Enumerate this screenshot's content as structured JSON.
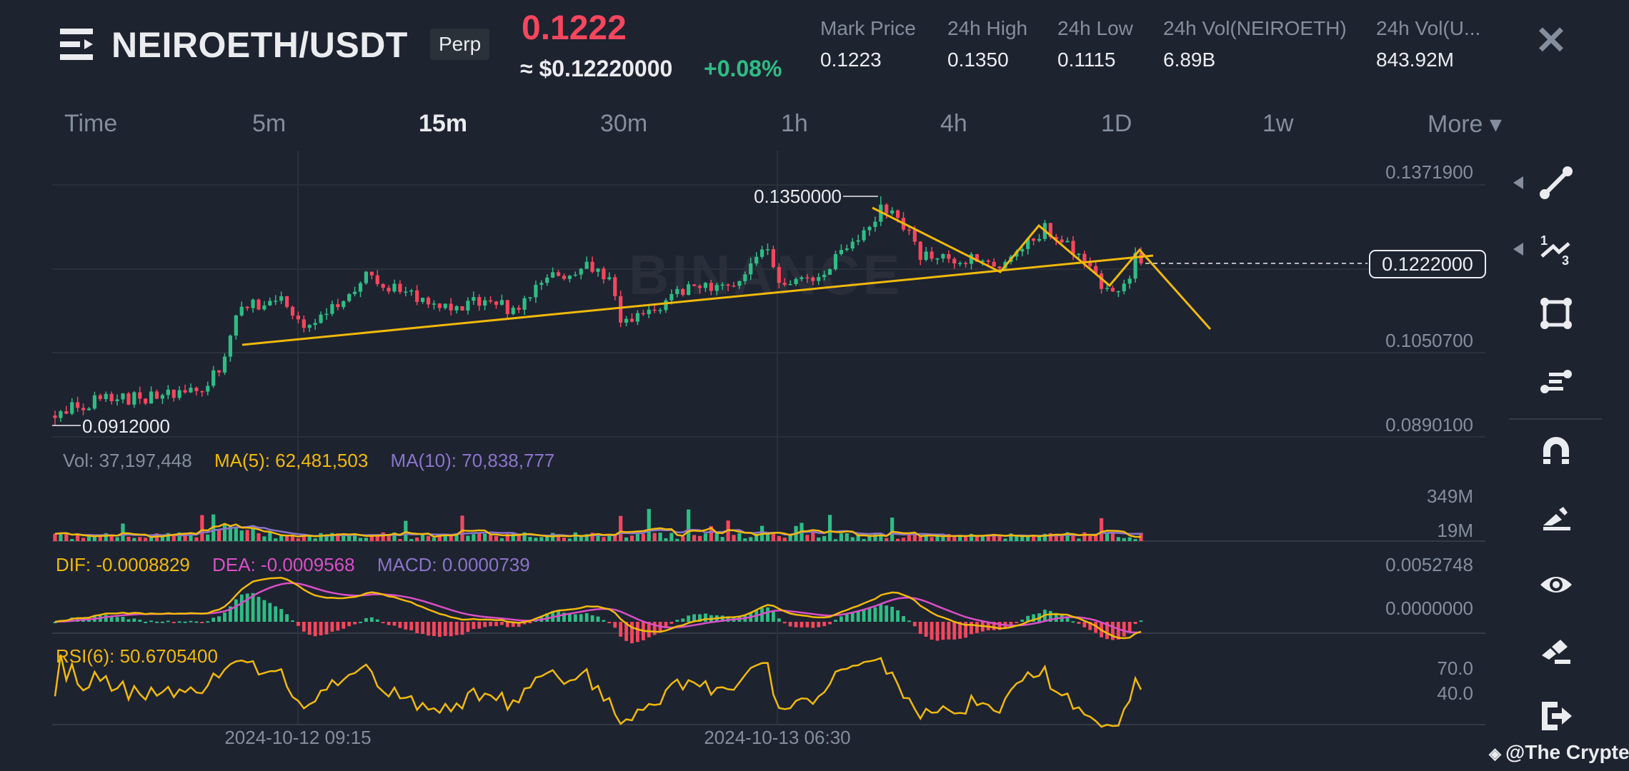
{
  "header": {
    "pair": "NEIROETH/USDT",
    "badge": "Perp",
    "last_price": "0.1222",
    "usd_price": "≈ $0.12220000",
    "change_pct": "+0.08%",
    "stats": [
      {
        "label": "Mark Price",
        "value": "0.1223"
      },
      {
        "label": "24h High",
        "value": "0.1350"
      },
      {
        "label": "24h Low",
        "value": "0.1115"
      },
      {
        "label": "24h Vol(NEIROETH)",
        "value": "6.89B"
      },
      {
        "label": "24h Vol(U...",
        "value": "843.92M"
      }
    ],
    "close_icon": "close-icon"
  },
  "tabs": [
    {
      "label": "Time"
    },
    {
      "label": "5m"
    },
    {
      "label": "15m",
      "active": true
    },
    {
      "label": "30m"
    },
    {
      "label": "1h"
    },
    {
      "label": "4h"
    },
    {
      "label": "1D"
    },
    {
      "label": "1w"
    },
    {
      "label": "More ▾"
    }
  ],
  "price_axis": [
    "0.1371900",
    "0.1050700",
    "0.0890100"
  ],
  "current_price_label": "0.1222000",
  "volume_panel": {
    "vol": "Vol: 37,197,448",
    "ma5": "MA(5): 62,481,503",
    "ma10": "MA(10): 70,838,777",
    "axis": [
      "349M",
      "19M"
    ]
  },
  "macd_panel": {
    "dif": "DIF: -0.0008829",
    "dea": "DEA: -0.0009568",
    "macd": "MACD: 0.0000739",
    "axis": [
      "0.0052748",
      "0.0000000"
    ]
  },
  "rsi_panel": {
    "rsi": "RSI(6): 50.6705400",
    "axis": [
      "70.0",
      "40.0"
    ]
  },
  "date_axis": [
    "2024-10-12 09:15",
    "2024-10-13 06:30"
  ],
  "watermark": "BINANCE",
  "credit": "@The Crypter",
  "toolbar": [
    "trend-line-icon",
    "fibonacci-icon",
    "rectangle-icon",
    "parallel-channel-icon",
    "magnet-icon",
    "pencil-icon",
    "eye-icon",
    "eraser-icon",
    "exit-icon"
  ],
  "colors": {
    "up": "#2ebd85",
    "down": "#f6465d",
    "accent": "#f0b90b",
    "ma10": "#8a74c9",
    "dea": "#d94fc6",
    "background": "#1e2330"
  },
  "chart_data": {
    "type": "candlestick",
    "interval": "15m",
    "ylim": [
      0.08901,
      0.13719
    ],
    "high_marker": "0.1350000",
    "low_marker": "0.0912000",
    "high_value": 0.135,
    "low_value": 0.0912,
    "last_price": 0.1222,
    "close_path": [
      [
        0,
        0.0931
      ],
      [
        7,
        0.0961
      ],
      [
        17,
        0.0967
      ],
      [
        26,
        0.0981
      ],
      [
        29,
        0.102
      ],
      [
        31,
        0.109
      ],
      [
        33,
        0.113
      ],
      [
        39,
        0.116
      ],
      [
        44,
        0.11
      ],
      [
        52,
        0.116
      ],
      [
        55,
        0.1199
      ],
      [
        65,
        0.115
      ],
      [
        70,
        0.1134
      ],
      [
        77,
        0.1154
      ],
      [
        81,
        0.113
      ],
      [
        87,
        0.1189
      ],
      [
        94,
        0.1219
      ],
      [
        98,
        0.1193
      ],
      [
        100,
        0.111
      ],
      [
        105,
        0.113
      ],
      [
        113,
        0.1179
      ],
      [
        120,
        0.1169
      ],
      [
        124,
        0.1229
      ],
      [
        126,
        0.1249
      ],
      [
        128,
        0.119
      ],
      [
        135,
        0.12
      ],
      [
        138,
        0.1229
      ],
      [
        142,
        0.1259
      ],
      [
        146,
        0.1328
      ],
      [
        149,
        0.1309
      ],
      [
        153,
        0.1239
      ],
      [
        161,
        0.123
      ],
      [
        168,
        0.1213
      ],
      [
        175,
        0.1289
      ],
      [
        181,
        0.1239
      ],
      [
        186,
        0.117
      ],
      [
        189,
        0.1175
      ],
      [
        191,
        0.123
      ],
      [
        192,
        0.1222
      ]
    ]
  }
}
